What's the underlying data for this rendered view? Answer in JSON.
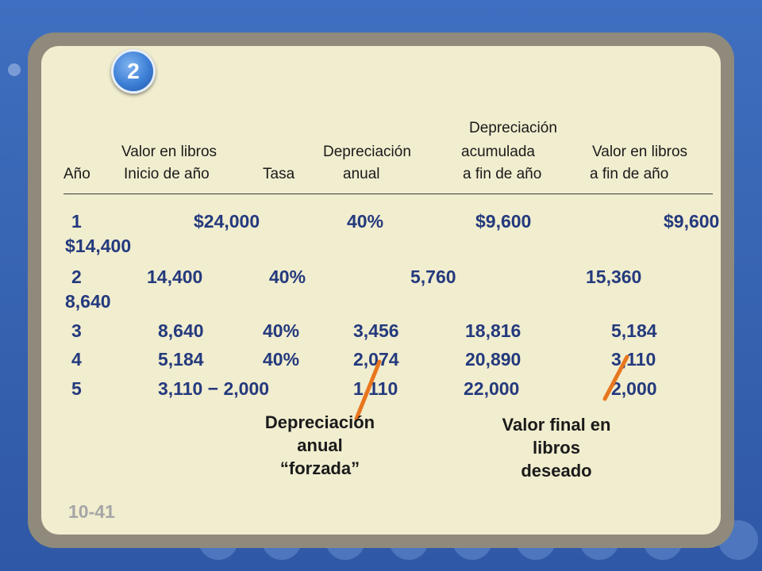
{
  "badge": {
    "label": "2"
  },
  "headers": {
    "year": "Año",
    "book_value_start_l1": "Valor en libros",
    "book_value_start_l2": "Inicio de año",
    "rate": "Tasa",
    "annual_dep_l1": "Depreciación",
    "annual_dep_l2": "anual",
    "accum_dep_l1": "Depreciación",
    "accum_dep_l2": "acumulada",
    "accum_dep_l3": "a fin de año",
    "book_value_end_l1": "Valor en libros",
    "book_value_end_l2": "a fin de año"
  },
  "rows": [
    {
      "year": "1",
      "start": "$24,000",
      "rate": "40%",
      "dep": "$9,600",
      "accum": "$9,600",
      "end": "$14,400"
    },
    {
      "year": "2",
      "start": "14,400",
      "rate": "40%",
      "dep": "5,760",
      "accum": "15,360",
      "end": "8,640"
    },
    {
      "year": "3",
      "start": "8,640",
      "rate": "40%",
      "dep": "3,456",
      "accum": "18,816",
      "end": "5,184"
    },
    {
      "year": "4",
      "start": "5,184",
      "rate": "40%",
      "dep": "2,074",
      "accum": "20,890",
      "end": "3,110"
    },
    {
      "year": "5",
      "start": "3,110 − 2,000",
      "rate": "",
      "dep": "1,110",
      "accum": "22,000",
      "end": "2,000"
    }
  ],
  "notes": {
    "forced_l1": "Depreciación",
    "forced_l2": "anual",
    "forced_l3": "“forzada”",
    "final_l1": "Valor final en",
    "final_l2": "libros",
    "final_l3": "deseado"
  },
  "slide_number": "10-41",
  "colors": {
    "accent": "#243a7d",
    "arrow": "#e8761e",
    "panel": "#f1edcf",
    "frame": "#8f8a7c",
    "background": "#3a66b4"
  }
}
